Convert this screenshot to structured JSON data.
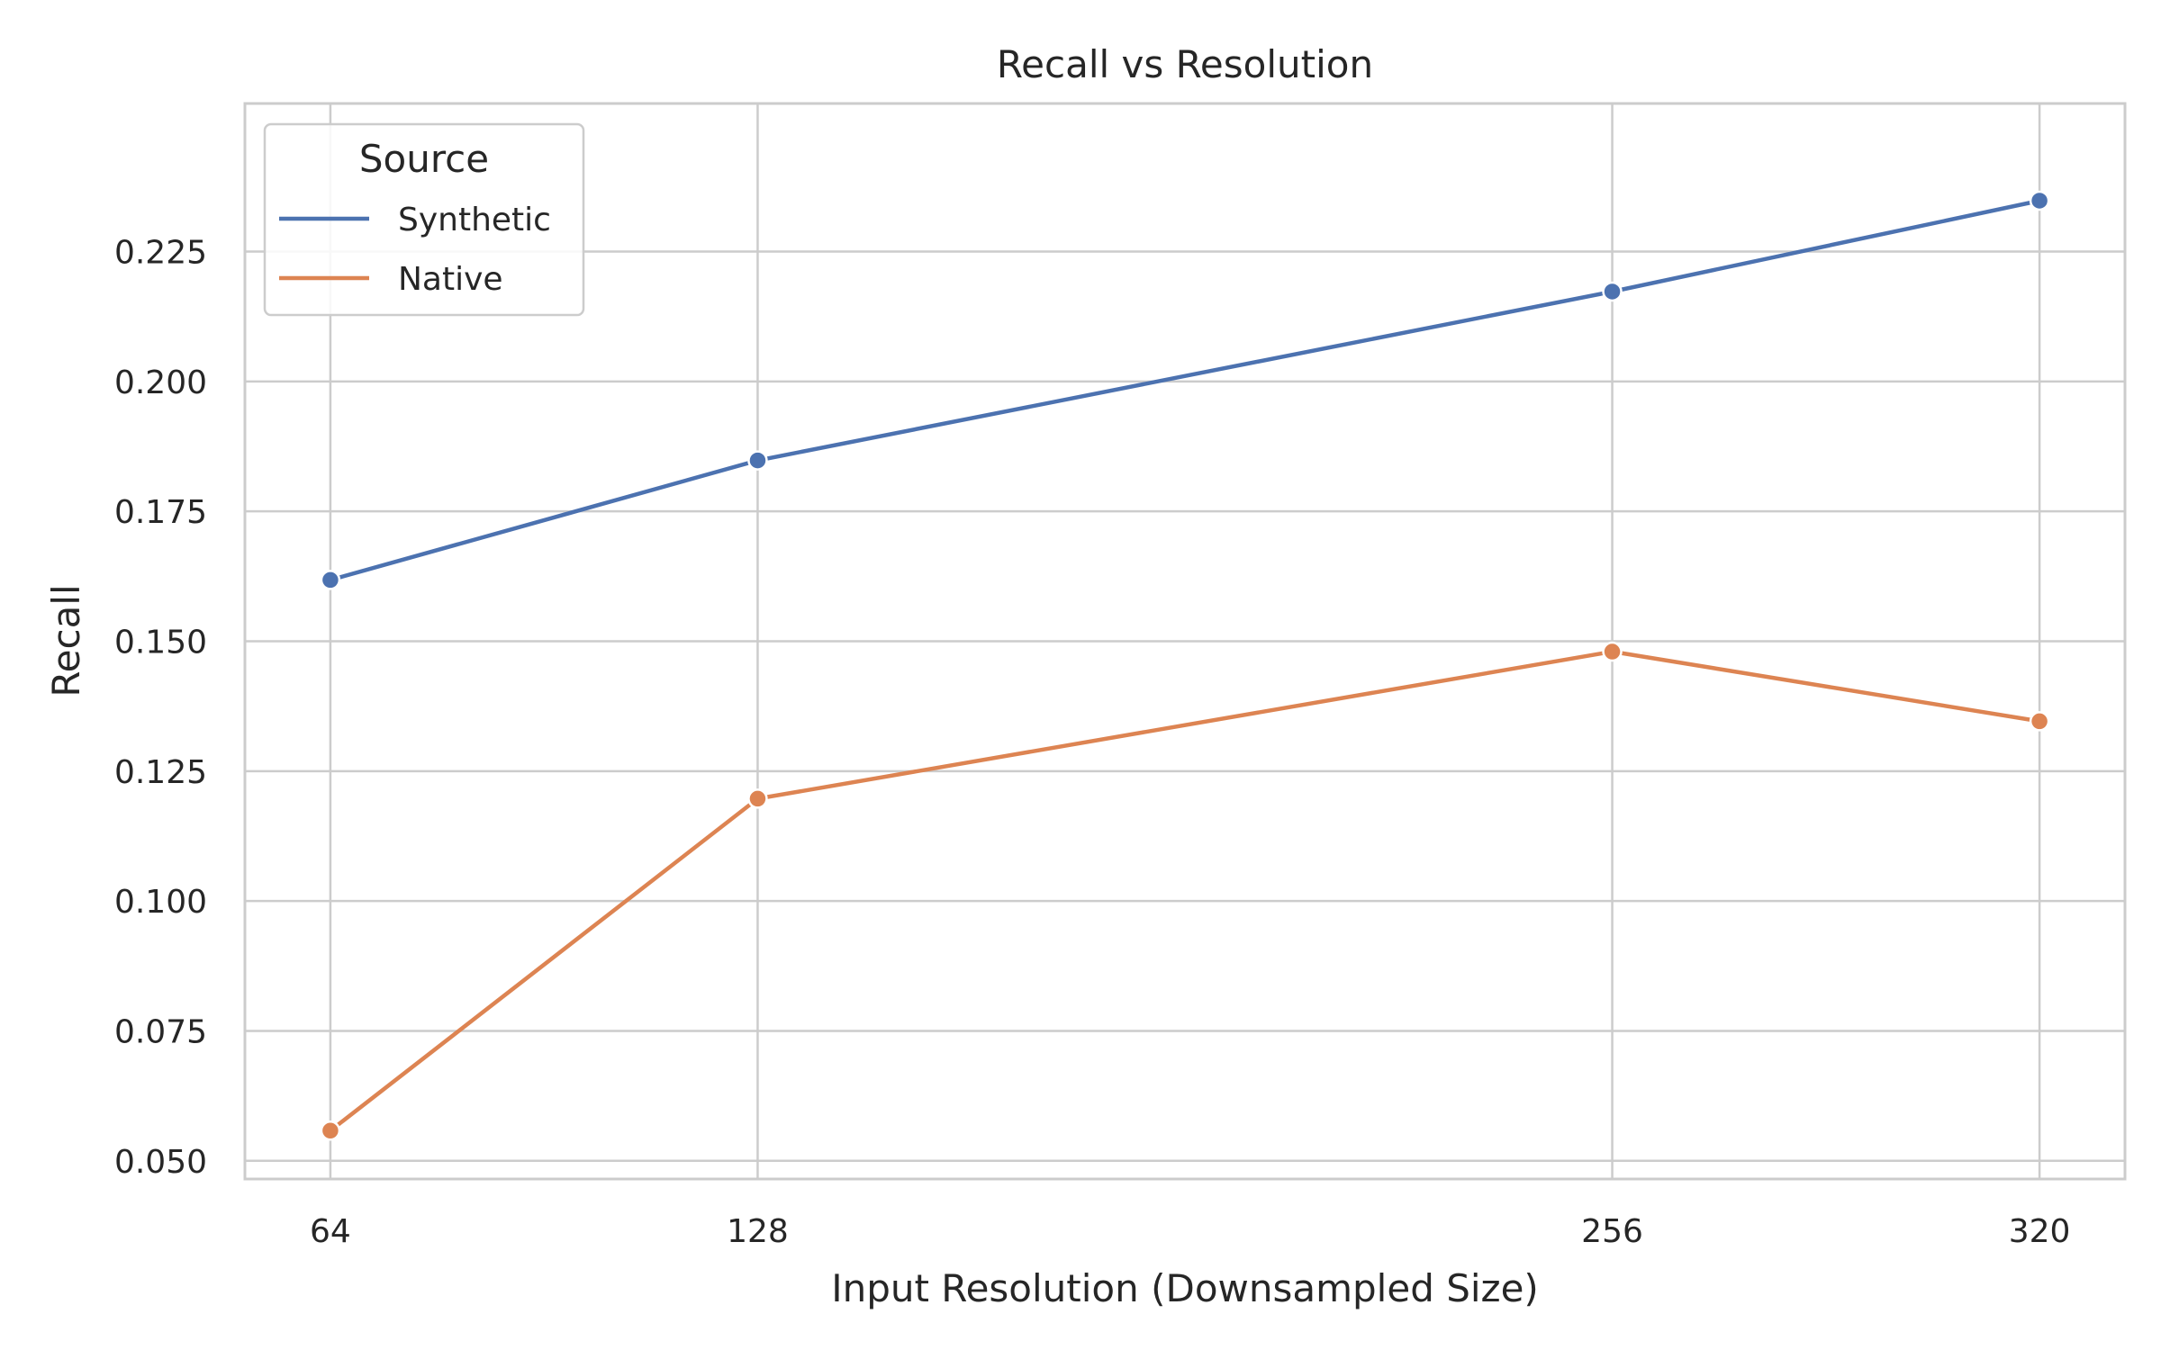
{
  "chart_data": {
    "type": "line",
    "title": "Recall vs Resolution",
    "xlabel": "Input Resolution (Downsampled Size)",
    "ylabel": "Recall",
    "x": [
      64,
      128,
      256,
      320
    ],
    "x_tick_labels": [
      "64",
      "128",
      "256",
      "320"
    ],
    "y_ticks": [
      0.05,
      0.075,
      0.1,
      0.125,
      0.15,
      0.175,
      0.2,
      0.225
    ],
    "y_tick_labels": [
      "0.050",
      "0.075",
      "0.100",
      "0.125",
      "0.150",
      "0.175",
      "0.200",
      "0.225"
    ],
    "xlim": [
      51.2,
      332.8
    ],
    "ylim": [
      0.0465,
      0.2535
    ],
    "grid": true,
    "legend": {
      "title": "Source",
      "placement": "top-left"
    },
    "series": [
      {
        "name": "Synthetic",
        "color": "#4c72b0",
        "values": [
          0.1618,
          0.1848,
          0.2173,
          0.2348
        ]
      },
      {
        "name": "Native",
        "color": "#dd8452",
        "values": [
          0.0558,
          0.1197,
          0.148,
          0.1346
        ]
      }
    ]
  }
}
